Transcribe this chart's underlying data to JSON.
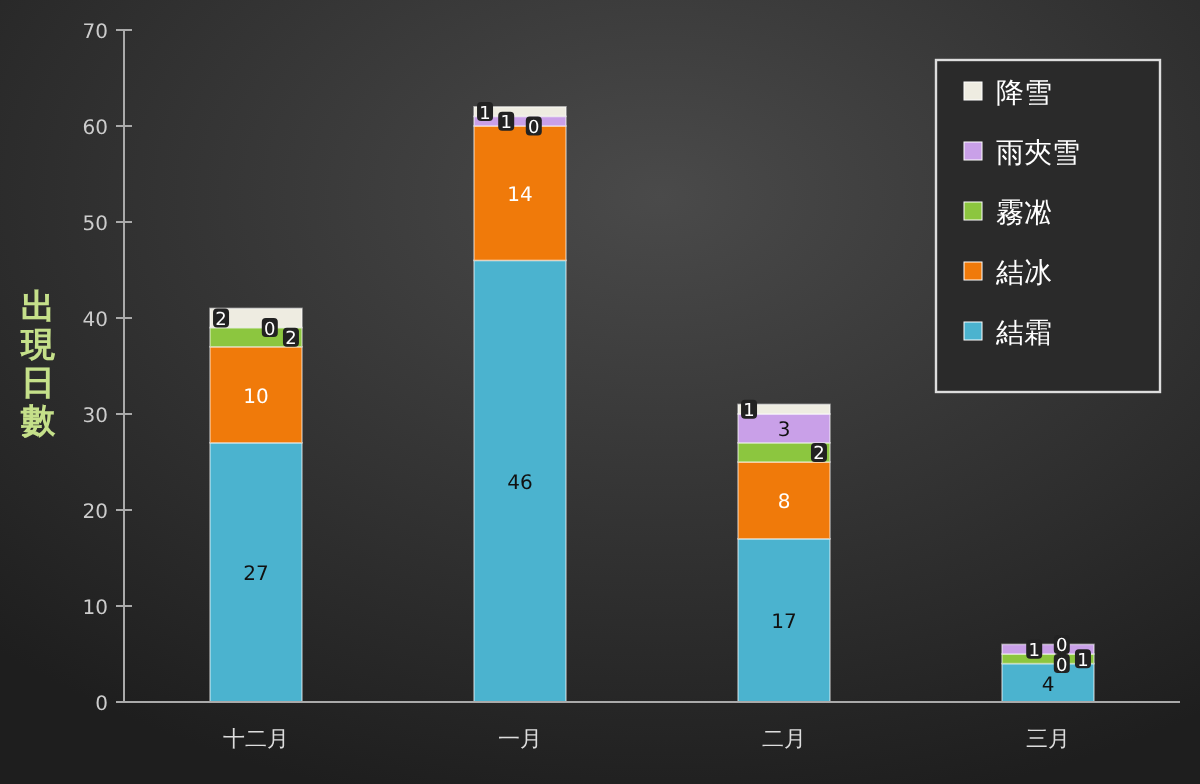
{
  "chart_data": {
    "type": "bar",
    "stacked": true,
    "ylabel": "出現日數",
    "categories": [
      "十二月",
      "一月",
      "二月",
      "三月"
    ],
    "series": [
      {
        "name": "結霜",
        "color": "#4bb3cf",
        "values": [
          27,
          46,
          17,
          4
        ]
      },
      {
        "name": "結冰",
        "color": "#f07a0a",
        "values": [
          10,
          14,
          8,
          0
        ]
      },
      {
        "name": "霧凇",
        "color": "#8cc63f",
        "values": [
          2,
          0,
          2,
          1
        ]
      },
      {
        "name": "雨夾雪",
        "color": "#c9a0e8",
        "values": [
          0,
          1,
          3,
          1
        ]
      },
      {
        "name": "降雪",
        "color": "#eeece1",
        "values": [
          2,
          1,
          1,
          0
        ]
      }
    ],
    "ylim": [
      0,
      70
    ],
    "yticks": [
      0,
      10,
      20,
      30,
      40,
      50,
      60,
      70
    ],
    "data_labels": true,
    "legend": "top right",
    "grid": false
  }
}
